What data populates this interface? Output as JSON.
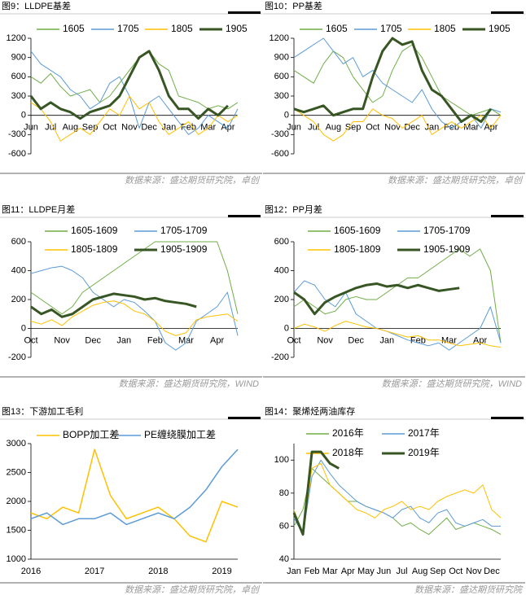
{
  "chart_data": [
    {
      "type": "line",
      "title": "图9：LLDPE基差",
      "source": "数据来源：盛达期货研究院，卓创",
      "categories": [
        "Jun",
        null,
        "Jul",
        null,
        "Aug",
        null,
        "Sep",
        null,
        "Oct",
        null,
        "Nov",
        null,
        "Dec",
        null,
        "Jan",
        null,
        "Feb",
        null,
        "Mar",
        null,
        "Apr",
        null
      ],
      "ylim": [
        -600,
        1200
      ],
      "yticks": [
        -600,
        -300,
        0,
        300,
        600,
        900,
        1200
      ],
      "series": [
        {
          "name": "1605",
          "color": "#70ad47",
          "line_width": 1,
          "values": [
            600,
            500,
            650,
            450,
            300,
            350,
            400,
            200,
            300,
            500,
            700,
            900,
            1000,
            800,
            700,
            300,
            250,
            200,
            100,
            150,
            100,
            200
          ]
        },
        {
          "name": "1705",
          "color": "#5b9bd5",
          "line_width": 1,
          "values": [
            1000,
            800,
            700,
            600,
            400,
            300,
            100,
            200,
            500,
            600,
            300,
            -200,
            200,
            300,
            100,
            -100,
            -300,
            -200,
            0,
            -100,
            -200,
            100
          ]
        },
        {
          "name": "1805",
          "color": "#ffc000",
          "line_width": 1,
          "values": [
            200,
            100,
            -100,
            -400,
            -300,
            -200,
            -300,
            -100,
            100,
            0,
            300,
            100,
            200,
            -100,
            -300,
            -200,
            -100,
            -300,
            -200,
            0,
            -100,
            0
          ]
        },
        {
          "name": "1905",
          "color": "#375623",
          "line_width": 3,
          "values": [
            300,
            100,
            200,
            100,
            50,
            -50,
            50,
            100,
            150,
            300,
            600,
            900,
            1000,
            700,
            300,
            100,
            100,
            -50,
            100,
            0,
            150,
            null
          ]
        }
      ]
    },
    {
      "type": "line",
      "title": "图10：PP基差",
      "source": "数据来源：盛达期货研究院，卓创",
      "categories": [
        "Jun",
        null,
        "Jul",
        null,
        "Aug",
        null,
        "Sep",
        null,
        "Oct",
        null,
        "Nov",
        null,
        "Dec",
        null,
        "Jan",
        null,
        "Feb",
        null,
        "Mar",
        null,
        "Apr",
        null
      ],
      "ylim": [
        -600,
        1200
      ],
      "yticks": [
        -600,
        -300,
        0,
        300,
        600,
        900,
        1200
      ],
      "series": [
        {
          "name": "1605",
          "color": "#70ad47",
          "line_width": 1,
          "values": [
            700,
            600,
            500,
            800,
            1000,
            900,
            600,
            400,
            200,
            300,
            700,
            1000,
            1100,
            900,
            600,
            300,
            200,
            100,
            0,
            50,
            100,
            0
          ]
        },
        {
          "name": "1705",
          "color": "#5b9bd5",
          "line_width": 1,
          "values": [
            900,
            1000,
            1100,
            1200,
            1000,
            800,
            900,
            600,
            700,
            500,
            400,
            300,
            200,
            400,
            100,
            -100,
            -200,
            -100,
            0,
            -200,
            100,
            50
          ]
        },
        {
          "name": "1805",
          "color": "#ffc000",
          "line_width": 1,
          "values": [
            100,
            0,
            -100,
            -300,
            -400,
            -300,
            -100,
            -100,
            100,
            0,
            -50,
            -200,
            -100,
            0,
            -300,
            -200,
            -100,
            -200,
            -100,
            0,
            -200,
            0
          ]
        },
        {
          "name": "1905",
          "color": "#375623",
          "line_width": 3,
          "values": [
            100,
            50,
            100,
            150,
            0,
            50,
            100,
            100,
            600,
            1000,
            1200,
            1100,
            1150,
            700,
            400,
            300,
            100,
            -100,
            0,
            -100,
            100,
            null
          ]
        }
      ]
    },
    {
      "type": "line",
      "title": "图11：LLDPE月差",
      "source": "数据来源：盛达期货研究院，WIND",
      "categories": [
        "Oct",
        null,
        null,
        "Nov",
        null,
        null,
        "Dec",
        null,
        null,
        "Jan",
        null,
        null,
        "Feb",
        null,
        null,
        "Mar",
        null,
        null,
        "Apr",
        null,
        null
      ],
      "ylim": [
        -200,
        600
      ],
      "yticks": [
        -200,
        0,
        200,
        400,
        600
      ],
      "series": [
        {
          "name": "1605-1609",
          "color": "#70ad47",
          "line_width": 1,
          "values": [
            250,
            200,
            150,
            100,
            150,
            250,
            300,
            350,
            400,
            450,
            500,
            550,
            600,
            600,
            600,
            600,
            600,
            600,
            600,
            400,
            100
          ]
        },
        {
          "name": "1705-1709",
          "color": "#5b9bd5",
          "line_width": 1,
          "values": [
            380,
            400,
            420,
            430,
            400,
            350,
            250,
            200,
            150,
            200,
            180,
            120,
            50,
            -100,
            -150,
            -100,
            50,
            100,
            150,
            250,
            -50
          ]
        },
        {
          "name": "1805-1809",
          "color": "#ffc000",
          "line_width": 1,
          "values": [
            50,
            30,
            60,
            20,
            80,
            120,
            160,
            180,
            190,
            170,
            120,
            100,
            50,
            -20,
            -50,
            -30,
            60,
            80,
            90,
            100,
            50
          ]
        },
        {
          "name": "1905-1909",
          "color": "#375623",
          "line_width": 3,
          "values": [
            150,
            100,
            130,
            80,
            100,
            150,
            200,
            220,
            240,
            230,
            220,
            200,
            210,
            190,
            180,
            170,
            150,
            null,
            null,
            null,
            null
          ]
        }
      ]
    },
    {
      "type": "line",
      "title": "图12：PP月差",
      "source": "数据来源：盛达期货研究院，WIND",
      "categories": [
        "Oct",
        null,
        null,
        "Nov",
        null,
        null,
        "Dec",
        null,
        null,
        "Jan",
        null,
        null,
        "Feb",
        null,
        null,
        "Mar",
        null,
        null,
        "Apr",
        null,
        null
      ],
      "ylim": [
        -200,
        600
      ],
      "yticks": [
        -200,
        0,
        200,
        400,
        600
      ],
      "series": [
        {
          "name": "1605-1609",
          "color": "#70ad47",
          "line_width": 1,
          "values": [
            150,
            200,
            150,
            100,
            120,
            200,
            220,
            200,
            200,
            250,
            300,
            350,
            350,
            400,
            450,
            500,
            550,
            500,
            550,
            400,
            -100
          ]
        },
        {
          "name": "1705-1709",
          "color": "#5b9bd5",
          "line_width": 1,
          "values": [
            250,
            330,
            300,
            200,
            150,
            250,
            100,
            50,
            0,
            -20,
            -50,
            -80,
            -100,
            -120,
            -100,
            -150,
            -100,
            -50,
            0,
            150,
            -100
          ]
        },
        {
          "name": "1805-1809",
          "color": "#ffc000",
          "line_width": 1,
          "values": [
            0,
            30,
            10,
            -20,
            20,
            50,
            30,
            10,
            0,
            -20,
            -40,
            -60,
            -50,
            -80,
            -80,
            -100,
            -120,
            -110,
            -100,
            -120,
            -130
          ]
        },
        {
          "name": "1905-1909",
          "color": "#375623",
          "line_width": 3,
          "values": [
            250,
            200,
            100,
            180,
            220,
            250,
            280,
            300,
            310,
            290,
            300,
            280,
            300,
            280,
            260,
            270,
            280,
            null,
            null,
            null,
            null
          ]
        }
      ]
    },
    {
      "type": "line",
      "title": "图13：下游加工毛利",
      "source": "数据来源：盛达期货研究院，卓创",
      "categories": [
        "2016",
        null,
        null,
        null,
        "2017",
        null,
        null,
        null,
        "2018",
        null,
        null,
        null,
        "2019",
        null
      ],
      "ylim": [
        1000,
        3000
      ],
      "yticks": [
        1000,
        1500,
        2000,
        2500,
        3000
      ],
      "series": [
        {
          "name": "BOPP加工差",
          "color": "#ffc000",
          "line_width": 1.5,
          "values": [
            1800,
            1700,
            1900,
            1800,
            2900,
            2100,
            1700,
            1800,
            1900,
            1700,
            1400,
            1300,
            2000,
            1900
          ]
        },
        {
          "name": "PE缠绕膜加工差",
          "color": "#5b9bd5",
          "line_width": 1.5,
          "values": [
            1700,
            1800,
            1600,
            1700,
            1700,
            1800,
            1600,
            1700,
            1800,
            1700,
            1900,
            2200,
            2600,
            2900
          ]
        }
      ]
    },
    {
      "type": "line",
      "title": "图14：聚烯烃两油库存",
      "source": "数据来源：盛达期货研究院",
      "categories": [
        "Jan",
        null,
        "Feb",
        null,
        "Mar",
        null,
        "Apr",
        null,
        "May",
        null,
        "Jun",
        null,
        "Jul",
        null,
        "Aug",
        null,
        "Sep",
        null,
        "Oct",
        null,
        "Nov",
        null,
        "Dec",
        null
      ],
      "ylim": [
        40,
        110
      ],
      "yticks": [
        40,
        60,
        80,
        100
      ],
      "series": [
        {
          "name": "2016年",
          "color": "#70ad47",
          "line_width": 1,
          "values": [
            60,
            70,
            95,
            90,
            85,
            80,
            75,
            75,
            72,
            70,
            68,
            65,
            60,
            62,
            58,
            55,
            60,
            65,
            58,
            60,
            62,
            60,
            58,
            55
          ]
        },
        {
          "name": "2017年",
          "color": "#5b9bd5",
          "line_width": 1,
          "values": [
            65,
            55,
            90,
            100,
            92,
            85,
            80,
            75,
            72,
            70,
            68,
            65,
            70,
            72,
            65,
            62,
            68,
            70,
            62,
            60,
            62,
            64,
            60,
            60
          ]
        },
        {
          "name": "2018年",
          "color": "#ffc000",
          "line_width": 1,
          "values": [
            70,
            55,
            95,
            98,
            85,
            80,
            75,
            70,
            68,
            65,
            70,
            72,
            75,
            70,
            72,
            70,
            75,
            78,
            80,
            82,
            80,
            85,
            70,
            65
          ]
        },
        {
          "name": "2019年",
          "color": "#375623",
          "line_width": 3,
          "values": [
            68,
            55,
            105,
            105,
            98,
            95,
            null,
            null,
            null,
            null,
            null,
            null,
            null,
            null,
            null,
            null,
            null,
            null,
            null,
            null,
            null,
            null,
            null,
            null
          ]
        }
      ]
    }
  ]
}
